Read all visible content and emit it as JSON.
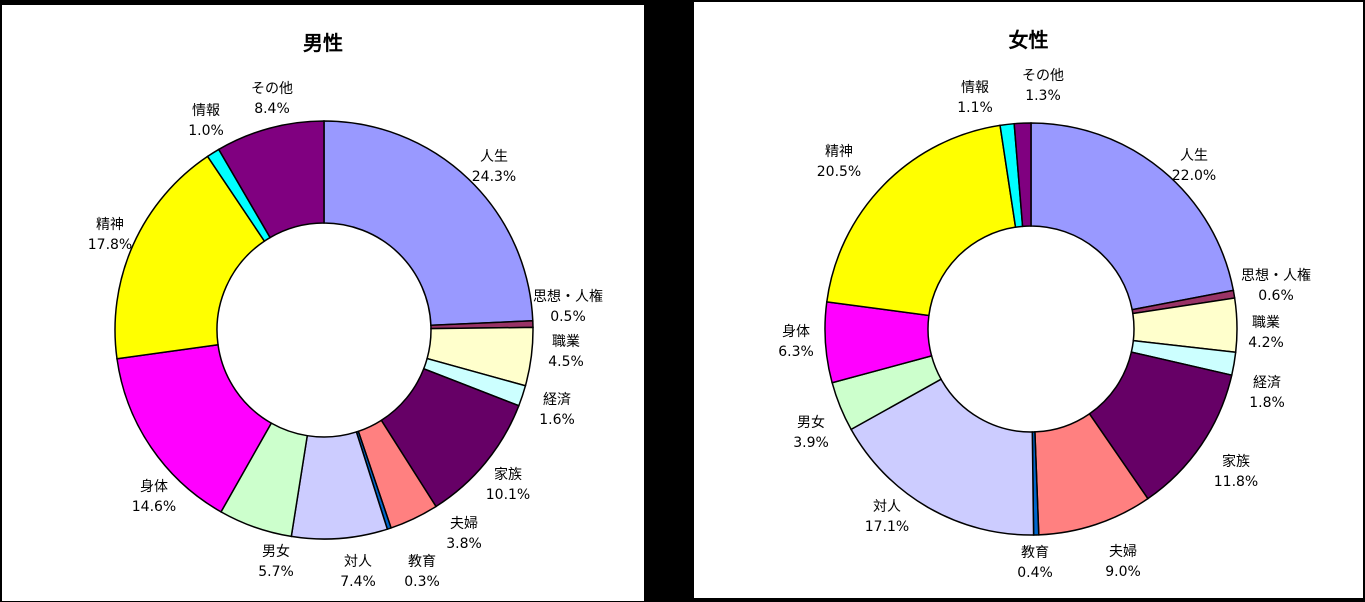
{
  "chart_data": [
    {
      "type": "pie",
      "title": "男性",
      "slices": [
        {
          "name": "人生",
          "value": 24.3,
          "label": "24.3%",
          "color": "#9999ff"
        },
        {
          "name": "思想・人権",
          "value": 0.5,
          "label": "0.5%",
          "color": "#993366"
        },
        {
          "name": "職業",
          "value": 4.5,
          "label": "4.5%",
          "color": "#ffffcc"
        },
        {
          "name": "経済",
          "value": 1.6,
          "label": "1.6%",
          "color": "#ccffff"
        },
        {
          "name": "家族",
          "value": 10.1,
          "label": "10.1%",
          "color": "#660066"
        },
        {
          "name": "夫婦",
          "value": 3.8,
          "label": "3.8%",
          "color": "#ff8080"
        },
        {
          "name": "教育",
          "value": 0.3,
          "label": "0.3%",
          "color": "#0066cc"
        },
        {
          "name": "対人",
          "value": 7.4,
          "label": "7.4%",
          "color": "#ccccff"
        },
        {
          "name": "男女",
          "value": 5.7,
          "label": "5.7%",
          "color": "#ccffcc"
        },
        {
          "name": "身体",
          "value": 14.6,
          "label": "14.6%",
          "color": "#ff00ff"
        },
        {
          "name": "精神",
          "value": 17.8,
          "label": "17.8%",
          "color": "#ffff00"
        },
        {
          "name": "情報",
          "value": 1.0,
          "label": "1.0%",
          "color": "#00ffff"
        },
        {
          "name": "その他",
          "value": 8.4,
          "label": "8.4%",
          "color": "#800080"
        }
      ]
    },
    {
      "type": "pie",
      "title": "女性",
      "slices": [
        {
          "name": "人生",
          "value": 22.0,
          "label": "22.0%",
          "color": "#9999ff"
        },
        {
          "name": "思想・人権",
          "value": 0.6,
          "label": "0.6%",
          "color": "#993366"
        },
        {
          "name": "職業",
          "value": 4.2,
          "label": "4.2%",
          "color": "#ffffcc"
        },
        {
          "name": "経済",
          "value": 1.8,
          "label": "1.8%",
          "color": "#ccffff"
        },
        {
          "name": "家族",
          "value": 11.8,
          "label": "11.8%",
          "color": "#660066"
        },
        {
          "name": "夫婦",
          "value": 9.0,
          "label": "9.0%",
          "color": "#ff8080"
        },
        {
          "name": "教育",
          "value": 0.4,
          "label": "0.4%",
          "color": "#0066cc"
        },
        {
          "name": "対人",
          "value": 17.1,
          "label": "17.1%",
          "color": "#ccccff"
        },
        {
          "name": "男女",
          "value": 3.9,
          "label": "3.9%",
          "color": "#ccffcc"
        },
        {
          "name": "身体",
          "value": 6.3,
          "label": "6.3%",
          "color": "#ff00ff"
        },
        {
          "name": "精神",
          "value": 20.5,
          "label": "20.5%",
          "color": "#ffff00"
        },
        {
          "name": "情報",
          "value": 1.1,
          "label": "1.1%",
          "color": "#00ffff"
        },
        {
          "name": "その他",
          "value": 1.3,
          "label": "1.3%",
          "color": "#800080"
        }
      ]
    }
  ]
}
